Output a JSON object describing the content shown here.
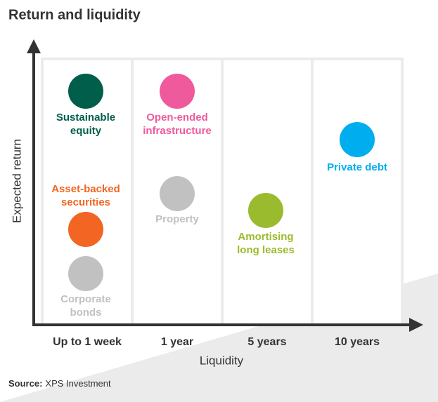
{
  "title": "Return and liquidity",
  "y_axis_label": "Expected return",
  "x_axis_label": "Liquidity",
  "columns": [
    "Up to 1 week",
    "1 year",
    "5 years",
    "10 years"
  ],
  "items": [
    {
      "lines": [
        "Sustainable",
        "equity"
      ],
      "color": "#005e4b"
    },
    {
      "lines": [
        "Asset-backed",
        "securities"
      ],
      "color": "#f26522"
    },
    {
      "lines": [
        "Corporate",
        "bonds"
      ],
      "color": "#c1c1c1"
    },
    {
      "lines": [
        "Open-ended",
        "infrastructure"
      ],
      "color": "#ee5a9c"
    },
    {
      "lines": [
        "Property"
      ],
      "color": "#c1c1c1"
    },
    {
      "lines": [
        "Amortising",
        "long leases"
      ],
      "color": "#9bbb2f"
    },
    {
      "lines": [
        "Private debt"
      ],
      "color": "#00aeef"
    }
  ],
  "source": {
    "label": "Source:",
    "text": "XPS Investment"
  }
}
